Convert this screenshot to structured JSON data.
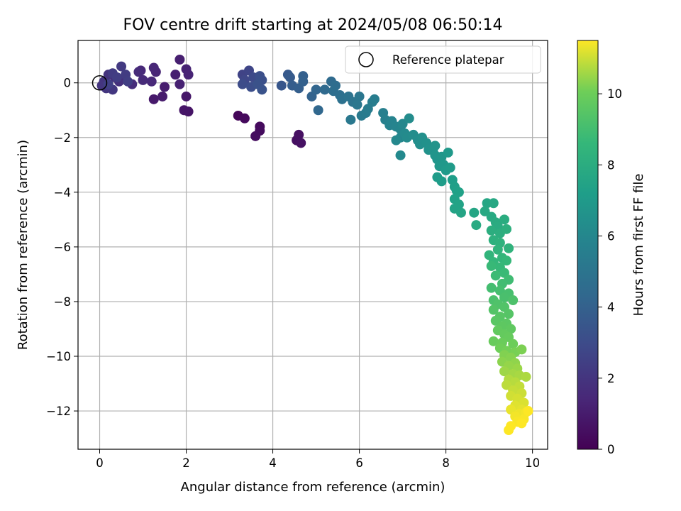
{
  "chart_data": {
    "type": "scatter",
    "title": "FOV centre drift starting at 2024/05/08 06:50:14",
    "xlabel": "Angular distance from reference (arcmin)",
    "ylabel": "Rotation from reference (arcmin)",
    "xlim": [
      -0.5,
      10.35
    ],
    "ylim": [
      -13.4,
      1.55
    ],
    "xticks": [
      0,
      2,
      4,
      6,
      8,
      10
    ],
    "yticks": [
      0,
      -2,
      -4,
      -6,
      -8,
      -10,
      -12
    ],
    "grid": true,
    "colormap": "viridis",
    "colorbar": {
      "label": "Hours from first FF file",
      "range": [
        0,
        11.5
      ],
      "ticks": [
        0,
        2,
        4,
        6,
        8,
        10
      ]
    },
    "legend": {
      "placement": "top-right",
      "entries": [
        "Reference platepar"
      ]
    },
    "reference_point": {
      "x": 0,
      "y": 0
    },
    "series": [
      {
        "values_xyc": [
          [
            3.2,
            -1.2,
            0.2
          ],
          [
            3.35,
            -1.3,
            0.3
          ],
          [
            3.7,
            -1.6,
            0.35
          ],
          [
            3.7,
            -1.75,
            0.4
          ],
          [
            3.6,
            -1.95,
            0.45
          ],
          [
            4.55,
            -2.1,
            0.5
          ],
          [
            4.6,
            -1.9,
            0.55
          ],
          [
            4.65,
            -2.2,
            0.6
          ],
          [
            2.05,
            -1.05,
            0.7
          ],
          [
            1.95,
            -1.0,
            0.75
          ],
          [
            2.0,
            -0.5,
            0.8
          ],
          [
            1.25,
            -0.6,
            0.9
          ],
          [
            1.45,
            -0.5,
            1.0
          ],
          [
            1.5,
            -0.15,
            1.05
          ],
          [
            1.85,
            0.85,
            1.1
          ],
          [
            1.75,
            0.3,
            1.15
          ],
          [
            1.85,
            -0.05,
            1.2
          ],
          [
            2.0,
            0.5,
            1.25
          ],
          [
            2.05,
            0.3,
            1.3
          ],
          [
            1.3,
            0.4,
            1.35
          ],
          [
            1.25,
            0.55,
            1.4
          ],
          [
            0.95,
            0.45,
            1.45
          ],
          [
            1.2,
            0.05,
            1.5
          ],
          [
            1.0,
            0.1,
            1.55
          ],
          [
            0.9,
            0.4,
            1.6
          ],
          [
            0.75,
            -0.05,
            1.65
          ],
          [
            0.55,
            0.15,
            1.75
          ],
          [
            0.45,
            0.05,
            1.8
          ],
          [
            0.35,
            0.2,
            1.85
          ],
          [
            0.2,
            0.3,
            1.9
          ],
          [
            0.1,
            0.05,
            1.95
          ],
          [
            0.05,
            -0.1,
            2.0
          ],
          [
            0.15,
            -0.2,
            2.05
          ],
          [
            0.3,
            -0.25,
            2.1
          ],
          [
            0.5,
            0.6,
            2.2
          ],
          [
            0.3,
            0.35,
            2.25
          ],
          [
            0.6,
            0.3,
            2.3
          ],
          [
            0.4,
            0.2,
            2.35
          ],
          [
            0.65,
            0.05,
            2.4
          ],
          [
            0.2,
            -0.05,
            2.5
          ],
          [
            3.3,
            0.3,
            2.6
          ],
          [
            3.45,
            0.45,
            2.7
          ],
          [
            3.35,
            0.1,
            2.8
          ],
          [
            3.55,
            0.2,
            2.9
          ],
          [
            3.3,
            -0.05,
            3.0
          ],
          [
            3.5,
            -0.15,
            3.1
          ],
          [
            3.7,
            0.25,
            3.15
          ],
          [
            3.75,
            0.1,
            3.2
          ],
          [
            3.65,
            -0.05,
            3.3
          ],
          [
            3.75,
            -0.25,
            3.35
          ],
          [
            4.2,
            -0.1,
            3.5
          ],
          [
            4.35,
            0.3,
            3.6
          ],
          [
            4.4,
            0.2,
            3.7
          ],
          [
            4.45,
            -0.1,
            3.8
          ],
          [
            4.6,
            -0.2,
            3.9
          ],
          [
            4.7,
            0.25,
            3.95
          ],
          [
            4.7,
            0.05,
            4.0
          ],
          [
            4.9,
            -0.5,
            4.1
          ],
          [
            5.0,
            -0.25,
            4.2
          ],
          [
            5.05,
            -1.0,
            4.3
          ],
          [
            5.2,
            -0.25,
            4.4
          ],
          [
            5.35,
            0.05,
            4.5
          ],
          [
            5.45,
            -0.1,
            4.6
          ],
          [
            5.4,
            -0.3,
            4.65
          ],
          [
            5.55,
            -0.45,
            4.7
          ],
          [
            5.6,
            -0.6,
            4.8
          ],
          [
            5.75,
            -0.5,
            4.9
          ],
          [
            5.85,
            -0.7,
            5.0
          ],
          [
            6.0,
            -0.5,
            5.1
          ],
          [
            5.95,
            -0.8,
            5.15
          ],
          [
            5.8,
            -1.35,
            5.2
          ],
          [
            6.05,
            -1.2,
            5.3
          ],
          [
            6.15,
            -1.1,
            5.35
          ],
          [
            6.2,
            -0.95,
            5.4
          ],
          [
            6.3,
            -0.7,
            5.45
          ],
          [
            6.35,
            -0.6,
            5.5
          ],
          [
            6.55,
            -1.1,
            5.6
          ],
          [
            6.6,
            -1.35,
            5.65
          ],
          [
            6.7,
            -1.55,
            5.75
          ],
          [
            6.75,
            -1.4,
            5.8
          ],
          [
            6.85,
            -1.6,
            5.85
          ],
          [
            6.95,
            -1.7,
            5.9
          ],
          [
            6.95,
            -2.0,
            5.95
          ],
          [
            7.0,
            -1.5,
            6.0
          ],
          [
            6.85,
            -2.1,
            6.05
          ],
          [
            6.95,
            -2.65,
            6.1
          ],
          [
            7.05,
            -1.85,
            6.15
          ],
          [
            7.1,
            -2.0,
            6.2
          ],
          [
            7.15,
            -1.3,
            6.25
          ],
          [
            7.25,
            -1.9,
            6.3
          ],
          [
            7.35,
            -2.1,
            6.35
          ],
          [
            7.4,
            -2.25,
            6.4
          ],
          [
            7.45,
            -2.0,
            6.45
          ],
          [
            7.55,
            -2.2,
            6.5
          ],
          [
            7.6,
            -2.45,
            6.55
          ],
          [
            7.7,
            -2.45,
            6.6
          ],
          [
            7.75,
            -2.3,
            6.65
          ],
          [
            7.75,
            -2.65,
            6.7
          ],
          [
            7.8,
            -2.8,
            6.75
          ],
          [
            7.9,
            -2.7,
            6.8
          ],
          [
            7.85,
            -3.05,
            6.85
          ],
          [
            7.95,
            -3.0,
            6.9
          ],
          [
            8.05,
            -2.55,
            6.95
          ],
          [
            8.0,
            -3.2,
            7.0
          ],
          [
            8.1,
            -3.1,
            7.05
          ],
          [
            7.8,
            -3.45,
            7.1
          ],
          [
            7.9,
            -3.6,
            7.15
          ],
          [
            8.15,
            -3.55,
            7.2
          ],
          [
            8.2,
            -3.8,
            7.25
          ],
          [
            8.25,
            -3.95,
            7.3
          ],
          [
            8.3,
            -4.0,
            7.35
          ],
          [
            8.2,
            -4.25,
            7.4
          ],
          [
            8.3,
            -4.45,
            7.45
          ],
          [
            8.2,
            -4.6,
            7.5
          ],
          [
            8.35,
            -4.75,
            7.55
          ],
          [
            8.65,
            -4.75,
            7.6
          ],
          [
            8.95,
            -4.4,
            7.65
          ],
          [
            9.1,
            -4.4,
            7.7
          ],
          [
            8.9,
            -4.7,
            7.75
          ],
          [
            9.05,
            -4.9,
            7.8
          ],
          [
            8.7,
            -5.2,
            7.85
          ],
          [
            9.15,
            -5.1,
            7.9
          ],
          [
            9.2,
            -5.25,
            7.95
          ],
          [
            9.35,
            -5.0,
            8.0
          ],
          [
            9.05,
            -5.4,
            8.05
          ],
          [
            9.25,
            -5.5,
            8.1
          ],
          [
            9.4,
            -5.35,
            8.15
          ],
          [
            9.1,
            -5.75,
            8.2
          ],
          [
            9.25,
            -5.85,
            8.3
          ],
          [
            9.45,
            -6.05,
            8.35
          ],
          [
            9.2,
            -6.1,
            8.4
          ],
          [
            9.0,
            -6.3,
            8.45
          ],
          [
            9.3,
            -6.4,
            8.5
          ],
          [
            9.1,
            -6.55,
            8.55
          ],
          [
            9.4,
            -6.5,
            8.6
          ],
          [
            9.25,
            -6.75,
            8.65
          ],
          [
            9.05,
            -6.7,
            8.7
          ],
          [
            9.35,
            -6.95,
            8.75
          ],
          [
            9.15,
            -7.05,
            8.8
          ],
          [
            9.45,
            -7.2,
            8.9
          ],
          [
            9.3,
            -7.35,
            8.95
          ],
          [
            9.05,
            -7.5,
            9.0
          ],
          [
            9.25,
            -7.6,
            9.05
          ],
          [
            9.45,
            -7.7,
            9.1
          ],
          [
            9.35,
            -7.85,
            9.15
          ],
          [
            9.1,
            -7.95,
            9.2
          ],
          [
            9.55,
            -7.95,
            9.25
          ],
          [
            9.2,
            -8.1,
            9.3
          ],
          [
            9.35,
            -8.2,
            9.35
          ],
          [
            9.1,
            -8.3,
            9.4
          ],
          [
            9.45,
            -8.45,
            9.45
          ],
          [
            9.25,
            -8.55,
            9.5
          ],
          [
            9.15,
            -8.7,
            9.55
          ],
          [
            9.4,
            -8.8,
            9.6
          ],
          [
            9.3,
            -8.9,
            9.65
          ],
          [
            9.5,
            -9.0,
            9.7
          ],
          [
            9.2,
            -9.05,
            9.75
          ],
          [
            9.35,
            -9.2,
            9.8
          ],
          [
            9.45,
            -9.3,
            9.85
          ],
          [
            9.1,
            -9.45,
            9.9
          ],
          [
            9.3,
            -9.5,
            9.95
          ],
          [
            9.55,
            -9.55,
            10.0
          ],
          [
            9.25,
            -9.7,
            10.05
          ],
          [
            9.4,
            -9.8,
            10.1
          ],
          [
            9.6,
            -9.85,
            10.15
          ],
          [
            9.75,
            -9.75,
            10.2
          ],
          [
            9.35,
            -9.95,
            10.25
          ],
          [
            9.5,
            -10.05,
            10.3
          ],
          [
            9.3,
            -10.2,
            10.35
          ],
          [
            9.6,
            -10.25,
            10.4
          ],
          [
            9.45,
            -10.35,
            10.45
          ],
          [
            9.65,
            -10.45,
            10.5
          ],
          [
            9.35,
            -10.55,
            10.55
          ],
          [
            9.55,
            -10.65,
            10.6
          ],
          [
            9.7,
            -10.7,
            10.65
          ],
          [
            9.85,
            -10.75,
            10.7
          ],
          [
            9.45,
            -10.85,
            10.75
          ],
          [
            9.6,
            -10.95,
            10.8
          ],
          [
            9.4,
            -11.05,
            10.85
          ],
          [
            9.7,
            -11.1,
            10.9
          ],
          [
            9.55,
            -11.25,
            10.95
          ],
          [
            9.75,
            -11.35,
            11.0
          ],
          [
            9.5,
            -11.45,
            11.05
          ],
          [
            9.65,
            -11.55,
            11.1
          ],
          [
            9.8,
            -11.7,
            11.15
          ],
          [
            9.6,
            -11.8,
            11.2
          ],
          [
            9.75,
            -11.95,
            11.25
          ],
          [
            9.5,
            -11.95,
            11.3
          ],
          [
            9.7,
            -12.1,
            11.35
          ],
          [
            9.85,
            -12.05,
            11.4
          ],
          [
            9.6,
            -12.2,
            11.4
          ],
          [
            9.8,
            -12.3,
            11.45
          ],
          [
            9.65,
            -12.4,
            11.45
          ],
          [
            9.5,
            -12.55,
            11.5
          ],
          [
            9.75,
            -12.45,
            11.5
          ],
          [
            9.45,
            -12.7,
            11.5
          ],
          [
            9.9,
            -12.0,
            11.5
          ]
        ]
      }
    ]
  }
}
